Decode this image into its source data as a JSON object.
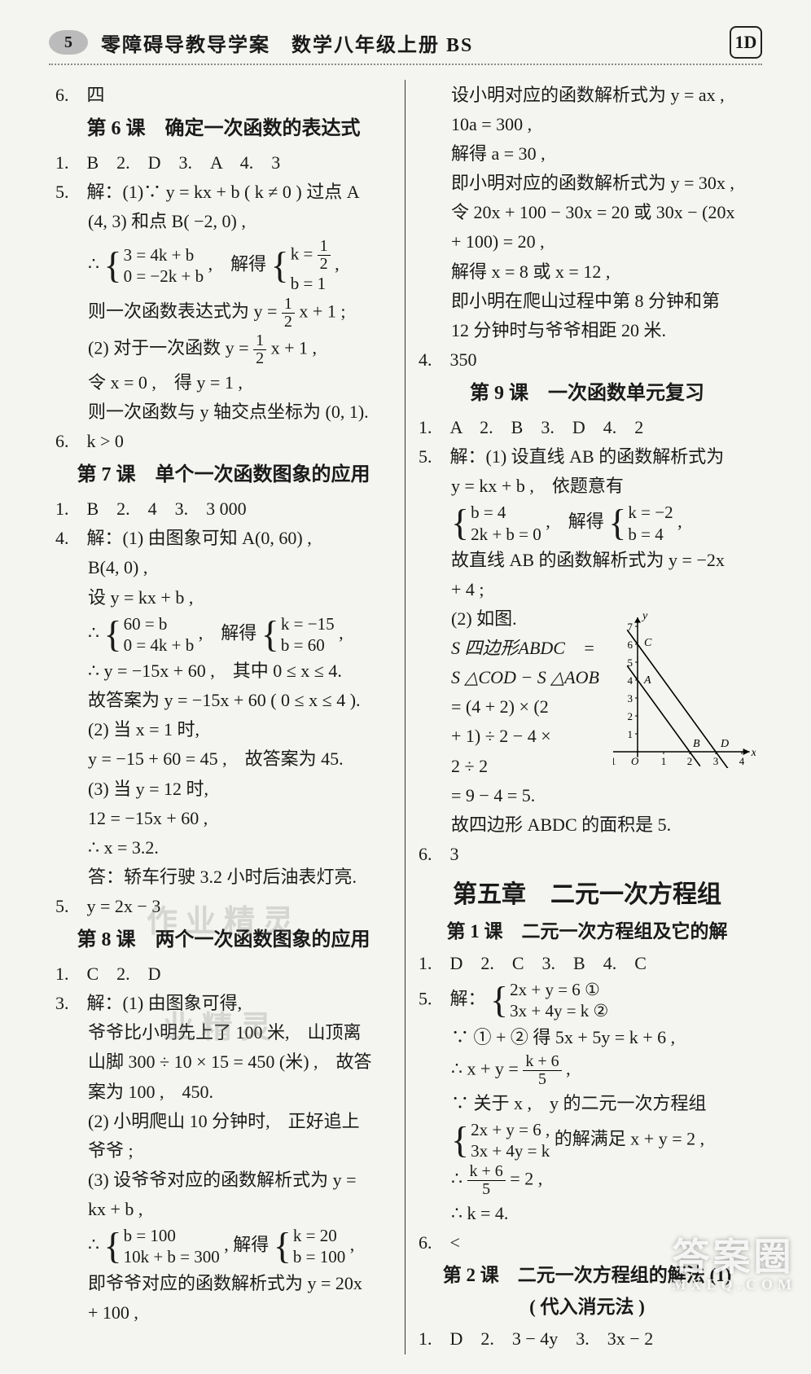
{
  "header": {
    "page_number": "5",
    "title": "零障碍导教导学案　数学八年级上册 BS",
    "logo_text": "1D"
  },
  "left": {
    "l0": "6.　四",
    "sec6": "第 6 课　确定一次函数的表达式",
    "l6_1": "1.　B　2.　D　3.　A　4.　3",
    "l6_5a": "5.　解：(1)∵ y = kx + b ( k ≠ 0 ) 过点 A",
    "l6_5b": "(4, 3) 和点 B( −2, 0) ,",
    "l6_5c_pre": "∴ ",
    "l6_5c_s1": "3 = 4k + b",
    "l6_5c_s2": "0 = −2k + b",
    "l6_5c_mid": " ,　解得",
    "l6_5c_r1_pre": "k = ",
    "l6_5c_r2": "b = 1",
    "l6_5d_pre": "则一次函数表达式为 y = ",
    "l6_5d_post": " x + 1 ;",
    "l6_5e_pre": "(2) 对于一次函数 y = ",
    "l6_5e_post": " x + 1 ,",
    "l6_5f": "令 x = 0 ,　得 y = 1 ,",
    "l6_5g": "则一次函数与 y 轴交点坐标为 (0, 1).",
    "l6_6": "6.　k > 0",
    "sec7": "第 7 课　单个一次函数图象的应用",
    "l7_1": "1.　B　2.　4　3.　3 000",
    "l7_4a": "4.　解：(1) 由图象可知 A(0, 60) ,",
    "l7_4b": "B(4, 0) ,",
    "l7_4c": "设 y = kx + b ,",
    "l7_4d_pre": "∴ ",
    "l7_4d_s1": "60 = b",
    "l7_4d_s2": "0 = 4k + b",
    "l7_4d_mid": " ,　解得",
    "l7_4d_r1": "k = −15",
    "l7_4d_r2": "b = 60",
    "l7_4d_post": " ,",
    "l7_4e": "∴ y = −15x + 60 ,　其中 0 ≤ x ≤ 4.",
    "l7_4f": "故答案为 y = −15x + 60 ( 0 ≤ x ≤ 4 ).",
    "l7_4g": "(2) 当 x = 1 时,",
    "l7_4h": "y = −15 + 60 = 45 ,　故答案为 45.",
    "l7_4i": "(3) 当 y = 12 时,",
    "l7_4j": "12 = −15x + 60 ,",
    "l7_4k": "∴ x = 3.2.",
    "l7_4l": "答：轿车行驶 3.2 小时后油表灯亮.",
    "l7_5": "5.　y = 2x − 3",
    "sec8": "第 8 课　两个一次函数图象的应用",
    "l8_1": "1.　C　2.　D",
    "l8_3a": "3.　解：(1) 由图象可得,",
    "l8_3b": "爷爷比小明先上了 100 米,　山顶离",
    "l8_3c": "山脚 300 ÷ 10 × 15 = 450 (米) ,　故答",
    "l8_3d": "案为 100 ,　450.",
    "l8_3e": "(2) 小明爬山 10 分钟时,　正好追上",
    "l8_3f": "爷爷 ;",
    "l8_3g": "(3) 设爷爷对应的函数解析式为 y =",
    "l8_3h": "kx + b ,",
    "l8_3i_pre": "∴ ",
    "l8_3i_s1": "b = 100",
    "l8_3i_s2": "10k + b = 300",
    "l8_3i_mid": " , 解得",
    "l8_3i_r1": "k = 20",
    "l8_3i_r2": "b = 100",
    "l8_3i_post": ",",
    "l8_3j": "即爷爷对应的函数解析式为 y = 20x",
    "l8_3k": "+ 100 ,"
  },
  "right": {
    "r_a": "设小明对应的函数解析式为 y = ax ,",
    "r_b": "10a = 300 ,",
    "r_c": "解得 a = 30 ,",
    "r_d": "即小明对应的函数解析式为 y = 30x ,",
    "r_e": "令 20x + 100 − 30x = 20 或 30x − (20x",
    "r_f": "+ 100) = 20 ,",
    "r_g": "解得 x = 8 或 x = 12 ,",
    "r_h": "即小明在爬山过程中第 8 分钟和第",
    "r_i": "12 分钟时与爷爷相距 20 米.",
    "r_4": "4.　350",
    "sec9": "第 9 课　一次函数单元复习",
    "l9_1": "1.　A　2.　B　3.　D　4.　2",
    "l9_5a": "5.　解：(1) 设直线 AB 的函数解析式为",
    "l9_5b": "y = kx + b ,　依题意有",
    "l9_5c_s1": "b = 4",
    "l9_5c_s2": "2k + b = 0",
    "l9_5c_mid": " ,　解得",
    "l9_5c_r1": "k = −2",
    "l9_5c_r2": "b = 4",
    "l9_5c_post": " ,",
    "l9_5d": "故直线 AB 的函数解析式为 y = −2x",
    "l9_5e": "+ 4 ;",
    "l9_5f": "(2) 如图.",
    "l9_5g": "S 四边形ABDC　=",
    "l9_5h": "S △COD − S △AOB",
    "l9_5i": "= (4 + 2) × (2",
    "l9_5j": "+ 1) ÷ 2 − 4 ×",
    "l9_5k": "2 ÷ 2",
    "l9_5l": "= 9 − 4 = 5.",
    "l9_5m": "故四边形 ABDC 的面积是 5.",
    "l9_6": "6.　3",
    "chap5": "第五章　二元一次方程组",
    "sec5_1": "第 1 课　二元一次方程组及它的解",
    "c1_1": "1.　D　2.　C　3.　B　4.　C",
    "c1_5a_pre": "5.　解：",
    "c1_5a_s1": "2x + y = 6 ①",
    "c1_5a_s2": "3x + 4y = k ②",
    "c1_5b": "∵ ① + ② 得 5x + 5y = k + 6 ,",
    "c1_5c_pre": "∴ x + y = ",
    "c1_5c_post": " ,",
    "c1_5d": "∵ 关于 x ,　y 的二元一次方程组",
    "c1_5e_s1": "2x + y = 6 ,",
    "c1_5e_s2": "3x + 4y = k",
    "c1_5e_post": "的解满足 x + y = 2 ,",
    "c1_5f_pre": "∴ ",
    "c1_5f_post": " = 2 ,",
    "c1_5g": "∴ k = 4.",
    "c1_6": "6.　<",
    "sec5_2a": "第 2 课　二元一次方程组的解法 (1)",
    "sec5_2b": "( 代入消元法 )",
    "c2_1": "1.　D　2.　3 − 4y　3.　3x − 2"
  },
  "frac_half": {
    "n": "1",
    "d": "2"
  },
  "frac_k6_5": {
    "n": "k + 6",
    "d": "5"
  },
  "graph": {
    "type": "line_chart_sketch",
    "x_ticks": [
      "-1",
      "O",
      "1",
      "2",
      "3",
      "4"
    ],
    "y_ticks": [
      "1",
      "2",
      "3",
      "4",
      "5",
      "6",
      "7"
    ],
    "x_label": "x",
    "y_label": "y",
    "labels": {
      "A": "A",
      "B": "B",
      "C": "C",
      "D": "D"
    },
    "line1": {
      "p1": [
        0,
        4
      ],
      "p2": [
        2,
        0
      ],
      "color": "#000",
      "width": 1.6
    },
    "line2": {
      "p1": [
        0,
        6
      ],
      "p2": [
        3,
        0
      ],
      "color": "#000",
      "width": 1.6
    },
    "axis_color": "#000",
    "bg": "#f4f4f0"
  },
  "watermarks": {
    "mid1": "作 业 精 灵",
    "mid2": "业 精 灵",
    "bottom_main": "答案圈",
    "bottom_sub": "MXEQ.COM"
  }
}
